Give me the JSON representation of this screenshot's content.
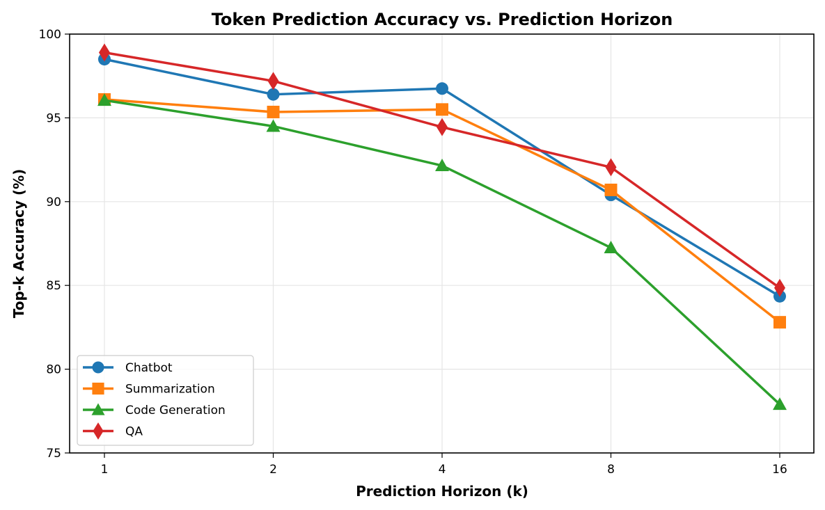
{
  "chart_data": {
    "type": "line",
    "title": "Token Prediction Accuracy vs. Prediction Horizon",
    "xlabel": "Prediction Horizon (k)",
    "ylabel": "Top-k Accuracy (%)",
    "categories": [
      "1",
      "2",
      "4",
      "8",
      "16"
    ],
    "x": [
      1,
      2,
      4,
      8,
      16
    ],
    "xscale": "log2",
    "ylim": [
      75,
      100
    ],
    "yticks": [
      75,
      80,
      85,
      90,
      95,
      100
    ],
    "grid": true,
    "legend_position": "lower left",
    "series": [
      {
        "name": "Chatbot",
        "color": "#1f77b4",
        "marker": "circle",
        "values": [
          98.5,
          96.4,
          96.75,
          90.4,
          84.35
        ]
      },
      {
        "name": "Summarization",
        "color": "#ff7f0e",
        "marker": "square",
        "values": [
          96.1,
          95.35,
          95.5,
          90.7,
          82.8
        ]
      },
      {
        "name": "Code Generation",
        "color": "#2ca02c",
        "marker": "triangle",
        "values": [
          96.05,
          94.5,
          92.15,
          87.25,
          77.9
        ]
      },
      {
        "name": "QA",
        "color": "#d62728",
        "marker": "diamond",
        "values": [
          98.9,
          97.2,
          94.45,
          92.05,
          84.85
        ]
      }
    ]
  }
}
